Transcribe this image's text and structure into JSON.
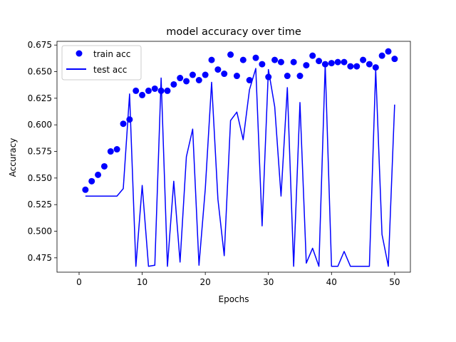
{
  "chart_data": {
    "type": "scatter+line",
    "title": "model accuracy over time",
    "xlabel": "Epochs",
    "ylabel": "Accuracy",
    "xlim": [
      -3.5,
      52.5
    ],
    "ylim": [
      0.4615,
      0.6785
    ],
    "xticks": [
      0,
      10,
      20,
      30,
      40,
      50
    ],
    "yticks": [
      0.475,
      0.5,
      0.525,
      0.55,
      0.575,
      0.6,
      0.625,
      0.65,
      0.675
    ],
    "ytick_labels": [
      "0.475",
      "0.500",
      "0.525",
      "0.550",
      "0.575",
      "0.600",
      "0.625",
      "0.650",
      "0.675"
    ],
    "legend_position": "upper-left",
    "grid": false,
    "series": [
      {
        "name": "train acc",
        "style": "markers",
        "color": "#0000ff",
        "x": [
          1,
          2,
          3,
          4,
          5,
          6,
          7,
          8,
          9,
          10,
          11,
          12,
          13,
          14,
          15,
          16,
          17,
          18,
          19,
          20,
          21,
          22,
          23,
          24,
          25,
          26,
          27,
          28,
          29,
          30,
          31,
          32,
          33,
          34,
          35,
          36,
          37,
          38,
          39,
          40,
          41,
          42,
          43,
          44,
          45,
          46,
          47,
          48,
          49,
          50
        ],
        "y": [
          0.539,
          0.547,
          0.553,
          0.561,
          0.575,
          0.577,
          0.601,
          0.605,
          0.632,
          0.628,
          0.632,
          0.634,
          0.632,
          0.632,
          0.638,
          0.644,
          0.641,
          0.647,
          0.642,
          0.647,
          0.661,
          0.652,
          0.648,
          0.666,
          0.646,
          0.661,
          0.642,
          0.663,
          0.657,
          0.645,
          0.661,
          0.659,
          0.646,
          0.659,
          0.646,
          0.656,
          0.665,
          0.66,
          0.657,
          0.658,
          0.659,
          0.659,
          0.655,
          0.655,
          0.661,
          0.657,
          0.654,
          0.665,
          0.669,
          0.662
        ]
      },
      {
        "name": "test acc",
        "style": "line",
        "color": "#0000ff",
        "x": [
          1,
          2,
          3,
          4,
          5,
          6,
          7,
          8,
          9,
          10,
          11,
          12,
          13,
          14,
          15,
          16,
          17,
          18,
          19,
          20,
          21,
          22,
          23,
          24,
          25,
          26,
          27,
          28,
          29,
          30,
          31,
          32,
          33,
          34,
          35,
          36,
          37,
          38,
          39,
          40,
          41,
          42,
          43,
          44,
          45,
          46,
          47,
          48,
          49,
          50
        ],
        "y": [
          0.533,
          0.533,
          0.533,
          0.533,
          0.533,
          0.533,
          0.54,
          0.629,
          0.467,
          0.543,
          0.467,
          0.468,
          0.644,
          0.467,
          0.547,
          0.471,
          0.57,
          0.596,
          0.468,
          0.54,
          0.64,
          0.53,
          0.477,
          0.604,
          0.612,
          0.586,
          0.633,
          0.653,
          0.505,
          0.652,
          0.617,
          0.533,
          0.635,
          0.467,
          0.621,
          0.47,
          0.484,
          0.467,
          0.657,
          0.467,
          0.467,
          0.481,
          0.467,
          0.467,
          0.467,
          0.467,
          0.652,
          0.497,
          0.467,
          0.619
        ]
      }
    ]
  }
}
